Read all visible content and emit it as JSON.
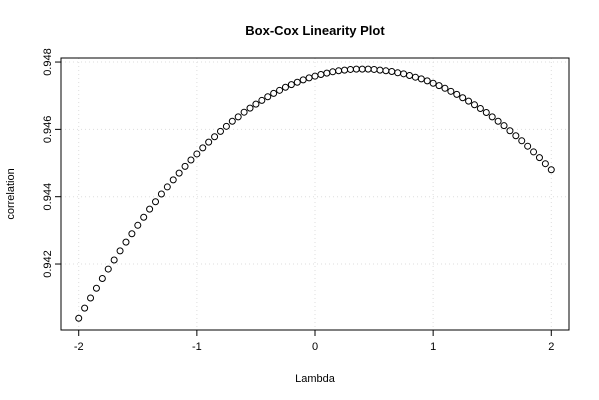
{
  "chart_data": {
    "type": "scatter",
    "title": "Box-Cox Linearity Plot",
    "x_label": "Lambda",
    "y_label": "correlation",
    "x": [
      -2,
      -1.95,
      -1.9,
      -1.85,
      -1.8,
      -1.75,
      -1.7,
      -1.65,
      -1.6,
      -1.55,
      -1.5,
      -1.45,
      -1.4,
      -1.35,
      -1.3,
      -1.25,
      -1.2,
      -1.15,
      -1.1,
      -1.05,
      -1,
      -0.95,
      -0.9,
      -0.85,
      -0.8,
      -0.75,
      -0.7,
      -0.65,
      -0.6,
      -0.55,
      -0.5,
      -0.45,
      -0.4,
      -0.35,
      -0.3,
      -0.25,
      -0.2,
      -0.15,
      -0.1,
      -0.05,
      0,
      0.05,
      0.1,
      0.15,
      0.2,
      0.25,
      0.3,
      0.35,
      0.4,
      0.45,
      0.5,
      0.55,
      0.6,
      0.65,
      0.7,
      0.75,
      0.8,
      0.85,
      0.9,
      0.95,
      1,
      1.05,
      1.1,
      1.15,
      1.2,
      1.25,
      1.3,
      1.35,
      1.4,
      1.45,
      1.5,
      1.55,
      1.6,
      1.65,
      1.7,
      1.75,
      1.8,
      1.85,
      1.9,
      1.95,
      2
    ],
    "values": [
      0.94039,
      0.94069,
      0.94099,
      0.94128,
      0.94157,
      0.94185,
      0.94212,
      0.94239,
      0.94265,
      0.9429,
      0.94315,
      0.94339,
      0.94363,
      0.94385,
      0.94408,
      0.94429,
      0.9445,
      0.9447,
      0.9449,
      0.94509,
      0.94527,
      0.94545,
      0.94562,
      0.94578,
      0.94594,
      0.94609,
      0.94624,
      0.94637,
      0.94651,
      0.94663,
      0.94675,
      0.94686,
      0.94697,
      0.94707,
      0.94716,
      0.94725,
      0.94733,
      0.9474,
      0.94747,
      0.94753,
      0.94758,
      0.94763,
      0.94767,
      0.94771,
      0.94774,
      0.94776,
      0.94778,
      0.94779,
      0.94779,
      0.94779,
      0.94778,
      0.94776,
      0.94774,
      0.94772,
      0.94768,
      0.94765,
      0.9476,
      0.94755,
      0.9475,
      0.94744,
      0.94737,
      0.9473,
      0.94722,
      0.94713,
      0.94704,
      0.94694,
      0.94684,
      0.94673,
      0.94662,
      0.9465,
      0.94637,
      0.94624,
      0.94611,
      0.94596,
      0.94581,
      0.94566,
      0.9455,
      0.94533,
      0.94516,
      0.94498,
      0.9448
    ],
    "color": "#000000",
    "xlim": [
      -2.15,
      2.15
    ],
    "xticks": [
      -2,
      -1,
      0,
      1,
      2
    ],
    "ylim": [
      0.94004,
      0.94812
    ],
    "yticks": [
      0.942,
      0.944,
      0.946,
      0.948
    ],
    "grid": true
  }
}
